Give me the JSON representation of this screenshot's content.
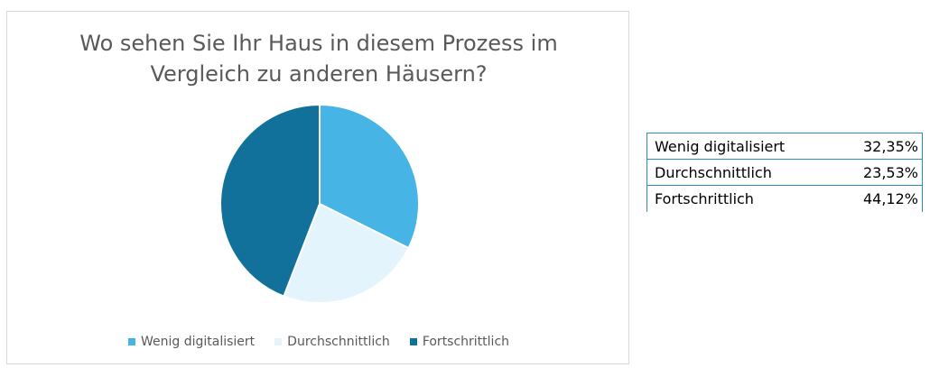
{
  "chart_data": {
    "type": "pie",
    "title_lines": [
      "Wo sehen Sie Ihr Haus in diesem Prozess im",
      "Vergleich zu anderen Häusern?"
    ],
    "categories": [
      "Wenig digitalisiert",
      "Durchschnittlich",
      "Fortschrittlich"
    ],
    "values": [
      32.35,
      23.53,
      44.12
    ],
    "colors": [
      "#46b5e5",
      "#e3f4fd",
      "#12719a"
    ],
    "legend_position": "bottom"
  },
  "table": {
    "rows": [
      {
        "label": "Wenig digitalisiert",
        "value": "32,35%"
      },
      {
        "label": "Durchschnittlich",
        "value": "23,53%"
      },
      {
        "label": "Fortschrittlich",
        "value": "44,12%"
      }
    ]
  }
}
